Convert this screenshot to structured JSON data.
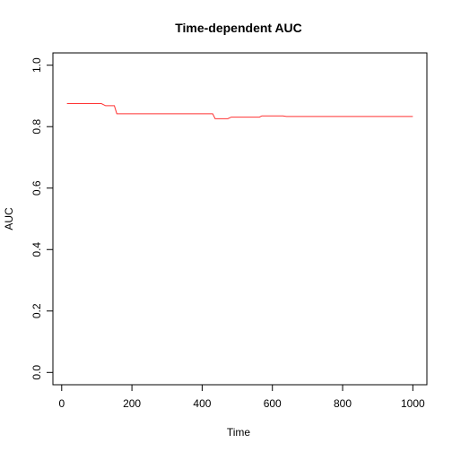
{
  "chart_data": {
    "type": "line",
    "title": "Time-dependent AUC",
    "x_label": "Time",
    "y_label": "AUC",
    "x": [
      15,
      113,
      125,
      150,
      157,
      430,
      437,
      473,
      483,
      563,
      570,
      630,
      640,
      1000
    ],
    "series": [
      {
        "color": "#ff3333",
        "values": [
          0.875,
          0.875,
          0.868,
          0.868,
          0.842,
          0.842,
          0.826,
          0.826,
          0.831,
          0.831,
          0.835,
          0.835,
          0.833,
          0.833
        ]
      }
    ],
    "xlim": [
      -25,
      1040
    ],
    "ylim": [
      -0.04,
      1.04
    ],
    "xticks": [
      0,
      200,
      400,
      600,
      800,
      1000
    ],
    "yticks": [
      {
        "value": 0,
        "label": "0.0"
      },
      {
        "value": 0.2,
        "label": "0.2"
      },
      {
        "value": 0.4,
        "label": "0.4"
      },
      {
        "value": 0.6,
        "label": "0.6"
      },
      {
        "value": 0.8,
        "label": "0.8"
      },
      {
        "value": 1,
        "label": "1.0"
      }
    ]
  }
}
